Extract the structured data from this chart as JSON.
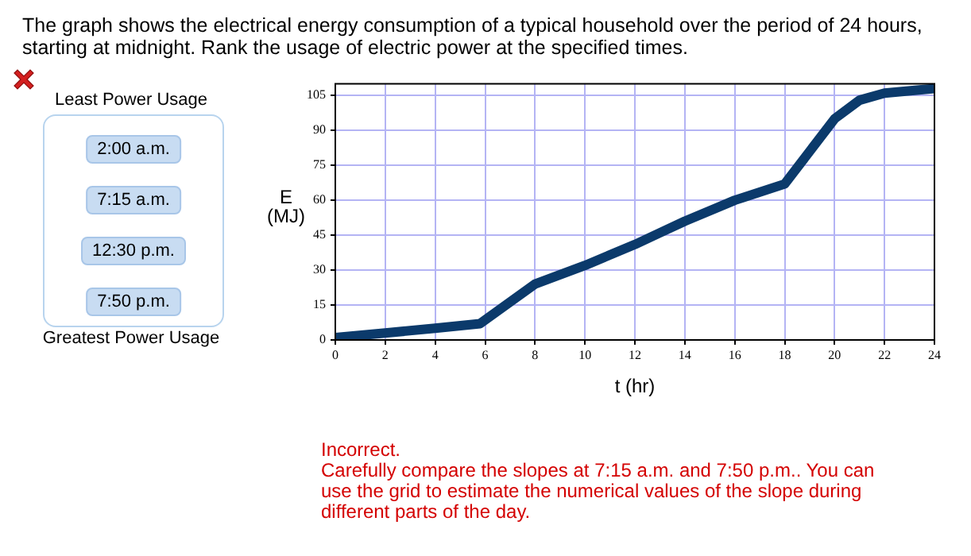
{
  "chart_data": {
    "type": "line",
    "title": "The graph shows the electrical energy consumption of a typical household over the period of 24 hours, starting at midnight.  Rank the usage of electric power at the specified times.",
    "xlabel": "t (hr)",
    "ylabel": "E\n(MJ)",
    "x": [
      0,
      2,
      4,
      5.8,
      8,
      10,
      12,
      13,
      14,
      16,
      18,
      20,
      21,
      22,
      24
    ],
    "series": [
      {
        "color": "#0b3a6b",
        "values": [
          1,
          3,
          5,
          7,
          24,
          32,
          41,
          46,
          51,
          60,
          67,
          95,
          103,
          106,
          108
        ]
      }
    ],
    "xlim": [
      0,
      24
    ],
    "xticks": [
      0,
      2,
      4,
      6,
      8,
      10,
      12,
      14,
      16,
      18,
      20,
      22,
      24
    ],
    "ylim": [
      0,
      110
    ],
    "yticks": [
      0,
      15,
      30,
      45,
      60,
      75,
      90,
      105
    ],
    "grid": true,
    "marker": "none",
    "line_style": "solid",
    "annotations": [
      "Least Power Usage",
      "2:00 a.m.",
      "7:15 a.m.",
      "12:30 p.m.",
      "7:50 p.m.",
      "Greatest Power Usage",
      "Incorrect.",
      "Carefully compare the slopes at 7:15 a.m. and 7:50 p.m..  You can use the grid to estimate the numerical values of the slope during different parts of the day."
    ]
  }
}
